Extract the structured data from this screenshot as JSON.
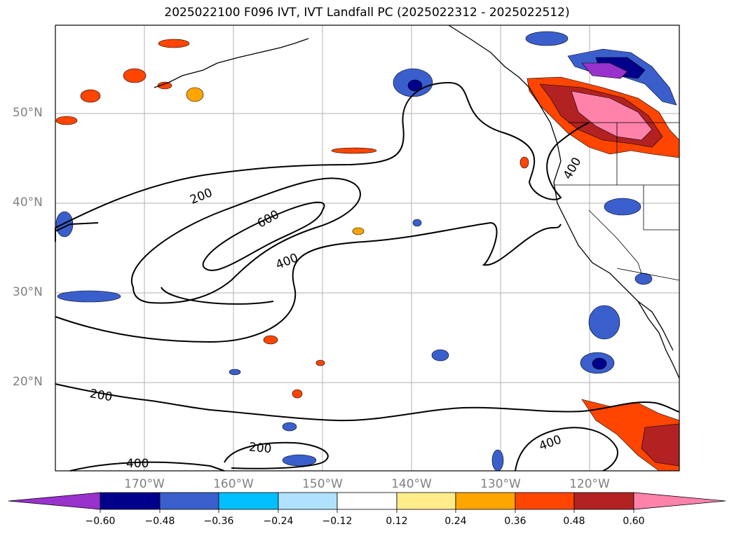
{
  "title": "2025022100 F096 IVT, IVT Landfall PC (2025022312 - 2025022512)",
  "lat_labels": [
    "50°N",
    "40°N",
    "30°N",
    "20°N"
  ],
  "lon_labels": [
    "170°W",
    "160°W",
    "150°W",
    "140°W",
    "130°W",
    "120°W"
  ],
  "contour_labels": [
    "200",
    "600",
    "400",
    "400",
    "200",
    "200",
    "400",
    "400"
  ],
  "colorbar": {
    "ticks": [
      "−0.60",
      "−0.48",
      "−0.36",
      "−0.24",
      "−0.12",
      "0.12",
      "0.24",
      "0.36",
      "0.48",
      "0.60"
    ],
    "colors": [
      "#9932CC",
      "#00008B",
      "#3A5FCD",
      "#00BFFF",
      "#B0E2FF",
      "#FFFFFF",
      "#FFEC8B",
      "#FFA500",
      "#FF4500",
      "#B22222",
      "#FF82AB"
    ]
  }
}
